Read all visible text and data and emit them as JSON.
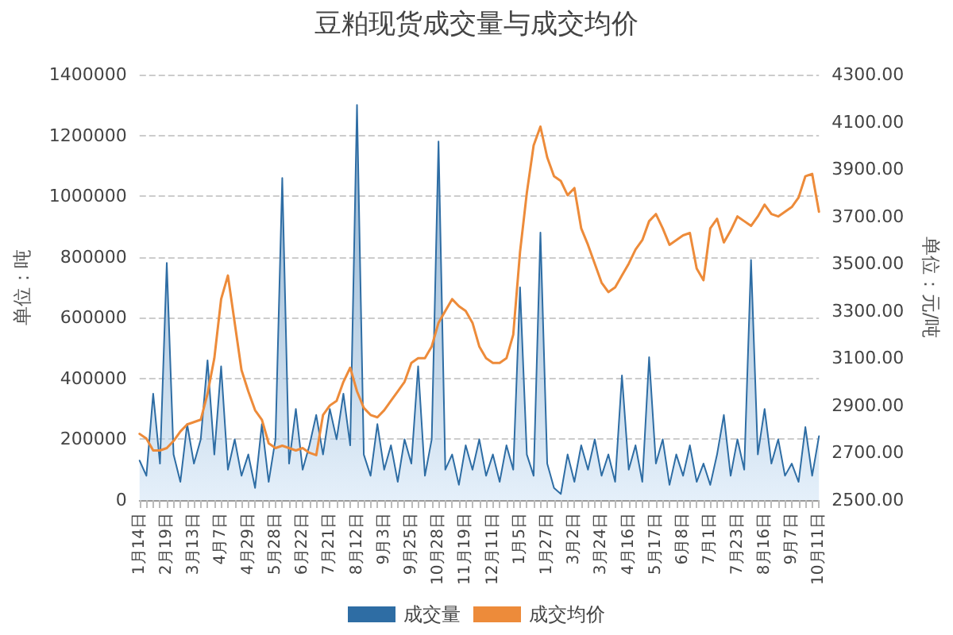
{
  "chart_data": {
    "type": "area",
    "title": "豆粕现货成交量与成交均价",
    "ylabel": "单位：吨",
    "y2label": "单位：元/吨",
    "categories": [
      "1月14日",
      null,
      null,
      null,
      "2月19日",
      null,
      null,
      null,
      "3月13日",
      null,
      null,
      null,
      "4月7日",
      null,
      null,
      null,
      "4月29日",
      null,
      null,
      null,
      "5月28日",
      null,
      null,
      null,
      "6月22日",
      null,
      null,
      null,
      "7月21日",
      null,
      null,
      null,
      "8月12日",
      null,
      null,
      null,
      "9月3日",
      null,
      null,
      null,
      "9月25日",
      null,
      null,
      null,
      "10月28日",
      null,
      null,
      null,
      "11月19日",
      null,
      null,
      null,
      "12月11日",
      null,
      null,
      null,
      "1月5日",
      null,
      null,
      null,
      "1月27日",
      null,
      null,
      null,
      "3月2日",
      null,
      null,
      null,
      "3月24日",
      null,
      null,
      null,
      "4月16日",
      null,
      null,
      null,
      "5月17日",
      null,
      null,
      null,
      "6月8日",
      null,
      null,
      null,
      "7月1日",
      null,
      null,
      null,
      "7月23日",
      null,
      null,
      null,
      "8月16日",
      null,
      null,
      null,
      "9月7日",
      null,
      null,
      null,
      "10月11日"
    ],
    "series": [
      {
        "name": "成交量",
        "color": "#2e6da4",
        "values": [
          130000,
          80000,
          350000,
          120000,
          780000,
          150000,
          60000,
          250000,
          120000,
          200000,
          460000,
          150000,
          440000,
          100000,
          200000,
          80000,
          150000,
          40000,
          250000,
          60000,
          200000,
          1060000,
          120000,
          300000,
          100000,
          180000,
          280000,
          150000,
          300000,
          200000,
          350000,
          180000,
          1300000,
          150000,
          80000,
          250000,
          100000,
          180000,
          60000,
          200000,
          120000,
          440000,
          80000,
          200000,
          1180000,
          100000,
          150000,
          50000,
          180000,
          100000,
          200000,
          80000,
          150000,
          60000,
          180000,
          100000,
          700000,
          150000,
          80000,
          880000,
          120000,
          40000,
          20000,
          150000,
          60000,
          180000,
          100000,
          200000,
          80000,
          150000,
          60000,
          410000,
          100000,
          180000,
          60000,
          470000,
          120000,
          200000,
          50000,
          150000,
          80000,
          180000,
          60000,
          120000,
          50000,
          150000,
          280000,
          80000,
          200000,
          100000,
          790000,
          150000,
          300000,
          120000,
          200000,
          80000,
          120000,
          60000,
          240000,
          80000,
          210000
        ]
      },
      {
        "name": "成交均价",
        "type": "line",
        "axis": "y2",
        "color": "#ed8b3a",
        "values": [
          2780,
          2760,
          2710,
          2710,
          2720,
          2750,
          2790,
          2820,
          2830,
          2840,
          2950,
          3100,
          3350,
          3450,
          3250,
          3050,
          2960,
          2880,
          2840,
          2740,
          2720,
          2730,
          2720,
          2710,
          2720,
          2700,
          2690,
          2860,
          2900,
          2920,
          3000,
          3060,
          2960,
          2890,
          2860,
          2850,
          2880,
          2920,
          2960,
          3000,
          3080,
          3100,
          3100,
          3150,
          3250,
          3300,
          3350,
          3320,
          3300,
          3250,
          3150,
          3100,
          3080,
          3080,
          3100,
          3200,
          3550,
          3800,
          4000,
          4080,
          3950,
          3870,
          3850,
          3790,
          3820,
          3650,
          3580,
          3500,
          3420,
          3380,
          3400,
          3450,
          3500,
          3560,
          3600,
          3680,
          3710,
          3650,
          3580,
          3600,
          3620,
          3630,
          3480,
          3430,
          3650,
          3690,
          3590,
          3640,
          3700,
          3680,
          3660,
          3700,
          3750,
          3710,
          3700,
          3720,
          3740,
          3780,
          3870,
          3880,
          3720
        ]
      }
    ],
    "ylim": [
      0,
      1400000
    ],
    "yticks": [
      0,
      200000,
      400000,
      600000,
      800000,
      1000000,
      1200000,
      1400000
    ],
    "y2lim": [
      2500,
      4300
    ],
    "y2ticks": [
      {
        "value": 2500,
        "label": "2500.00"
      },
      {
        "value": 2700,
        "label": "2700.00"
      },
      {
        "value": 2900,
        "label": "2900.00"
      },
      {
        "value": 3100,
        "label": "3100.00"
      },
      {
        "value": 3300,
        "label": "3300.00"
      },
      {
        "value": 3500,
        "label": "3500.00"
      },
      {
        "value": 3700,
        "label": "3700.00"
      },
      {
        "value": 3900,
        "label": "3900.00"
      },
      {
        "value": 4100,
        "label": "4100.00"
      },
      {
        "value": 4300,
        "label": "4300.00"
      }
    ],
    "grid": "y",
    "legend": "bottom",
    "marker": "none",
    "line_style": "solid"
  }
}
